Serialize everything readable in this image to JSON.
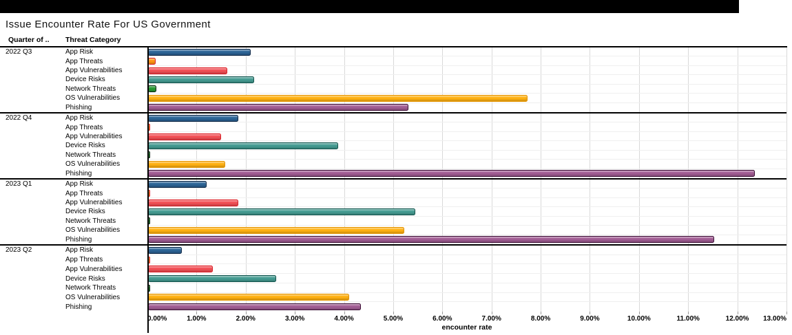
{
  "window": {
    "top_bar_color": "#000000"
  },
  "title": "Issue Encounter Rate For US Government",
  "columns": {
    "quarter_header": "Quarter of ..",
    "category_header": "Threat Category"
  },
  "axis": {
    "title": "encounter rate"
  },
  "chart_data": {
    "type": "bar",
    "orientation": "horizontal",
    "title": "Issue Encounter Rate For US Government",
    "xlabel": "encounter rate",
    "unit": "%",
    "xlim": [
      0,
      13
    ],
    "tick_step": 1,
    "grid": "vertical-light-gray",
    "x_tick_labels": [
      "0.00%",
      "1.00%",
      "2.00%",
      "3.00%",
      "4.00%",
      "5.00%",
      "6.00%",
      "7.00%",
      "8.00%",
      "9.00%",
      "10.00%",
      "11.00%",
      "12.00%",
      "13.00%"
    ],
    "categories": [
      {
        "name": "App Risk",
        "fill": "#2d6597",
        "border": "#0b2545"
      },
      {
        "name": "App Threats",
        "fill": "#ff9714",
        "border": "#dd2025"
      },
      {
        "name": "App Vulnerabilities",
        "fill": "#f25056",
        "border": "#dc1c23"
      },
      {
        "name": "Device Risks",
        "fill": "#459c92",
        "border": "#0f524b"
      },
      {
        "name": "Network Threats",
        "fill": "#279a33",
        "border": "#05230a"
      },
      {
        "name": "OS Vulnerabilities",
        "fill": "#ffb112",
        "border": "#e59400"
      },
      {
        "name": "Phishing",
        "fill": "#a25d94",
        "border": "#3a0c33"
      }
    ],
    "groups": [
      {
        "quarter": "2022 Q3",
        "values": [
          2.11,
          0.18,
          1.64,
          2.18,
          0.2,
          7.74,
          5.33
        ]
      },
      {
        "quarter": "2022 Q4",
        "values": [
          1.86,
          0.05,
          1.51,
          3.9,
          0.03,
          1.59,
          12.37
        ]
      },
      {
        "quarter": "2023 Q1",
        "values": [
          1.22,
          0.04,
          1.87,
          5.47,
          0.02,
          5.24,
          11.55
        ]
      },
      {
        "quarter": "2023 Q2",
        "values": [
          0.71,
          0.04,
          1.35,
          2.64,
          0.04,
          4.12,
          4.35
        ]
      }
    ]
  }
}
